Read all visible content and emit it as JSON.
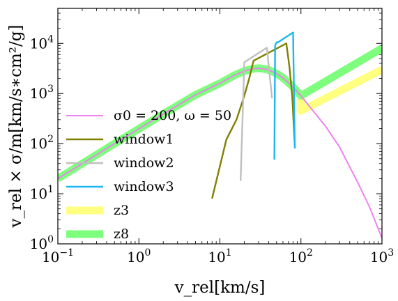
{
  "chart_data": {
    "type": "line",
    "title": "",
    "xlabel": "v_rel[km/s]",
    "ylabel": "v_rel × σ/m[km/s∗cm²/g]",
    "xscale": "log",
    "yscale": "log",
    "xlim": [
      0.1,
      1000
    ],
    "ylim": [
      1,
      50000
    ],
    "x_ticks": [
      {
        "value": 0.1,
        "base": "10",
        "exp": "−1"
      },
      {
        "value": 1,
        "base": "10",
        "exp": "0"
      },
      {
        "value": 10,
        "base": "10",
        "exp": "1"
      },
      {
        "value": 100,
        "base": "10",
        "exp": "2"
      },
      {
        "value": 1000,
        "base": "10",
        "exp": "3"
      }
    ],
    "y_ticks": [
      {
        "value": 1,
        "base": "10",
        "exp": "0"
      },
      {
        "value": 10,
        "base": "10",
        "exp": "1"
      },
      {
        "value": 100,
        "base": "10",
        "exp": "2"
      },
      {
        "value": 1000,
        "base": "10",
        "exp": "3"
      },
      {
        "value": 10000,
        "base": "10",
        "exp": "4"
      }
    ],
    "grid": false,
    "legend_position": "lower-left",
    "series": [
      {
        "name": "σ0 = 200, ω = 50",
        "color": "#ee82ee",
        "width": 2,
        "x": [
          0.1,
          0.2,
          0.5,
          1,
          2,
          5,
          10,
          15,
          20,
          25,
          30,
          35,
          40,
          50,
          60,
          70,
          80,
          100,
          150,
          200,
          300,
          500,
          700,
          1000
        ],
        "y": [
          20,
          40,
          100,
          198,
          390,
          940,
          1600,
          2300,
          2800,
          3100,
          3200,
          3100,
          2950,
          2500,
          2050,
          1650,
          1350,
          900,
          400,
          225,
          85,
          17,
          5.5,
          1.3
        ]
      },
      {
        "name": "window1",
        "color": "#808000",
        "width": 2.4,
        "x": [
          8,
          12,
          16,
          20,
          23,
          26,
          66,
          72,
          78,
          84
        ],
        "y": [
          8,
          120,
          300,
          900,
          2000,
          4500,
          10000,
          3500,
          900,
          90
        ]
      },
      {
        "name": "window2",
        "color": "#c0c0c0",
        "width": 2.4,
        "x": [
          18,
          20,
          38,
          44
        ],
        "y": [
          18,
          4200,
          8200,
          800
        ]
      },
      {
        "name": "window3",
        "color": "#1ab8f0",
        "width": 2.4,
        "x": [
          47,
          48,
          50,
          52,
          80,
          84
        ],
        "y": [
          48,
          9000,
          10500,
          10500,
          16500,
          80
        ]
      },
      {
        "name": "z3",
        "color": "#ffff80",
        "width": 11,
        "x": [
          0.1,
          0.2,
          0.5,
          1,
          2,
          5,
          10,
          15,
          20,
          25,
          30,
          35,
          40,
          50,
          60,
          70,
          80,
          100,
          100,
          1000
        ],
        "y": [
          20,
          40,
          100,
          198,
          390,
          940,
          1600,
          2300,
          2800,
          3100,
          3200,
          3100,
          2950,
          2500,
          2050,
          1650,
          1350,
          900,
          450,
          3000
        ]
      },
      {
        "name": "z8",
        "color": "#7dff7d",
        "width": 11,
        "x": [
          0.1,
          0.2,
          0.5,
          1,
          2,
          5,
          10,
          15,
          20,
          25,
          30,
          35,
          40,
          50,
          60,
          70,
          80,
          100,
          1000
        ],
        "y": [
          20,
          40,
          100,
          198,
          390,
          940,
          1600,
          2300,
          2800,
          3100,
          3200,
          3100,
          2950,
          2500,
          2050,
          1650,
          1350,
          900,
          8000
        ]
      }
    ],
    "draw_order": [
      "z3",
      "z8",
      "σ0 = 200, ω = 50",
      "window1",
      "window2",
      "window3"
    ]
  }
}
